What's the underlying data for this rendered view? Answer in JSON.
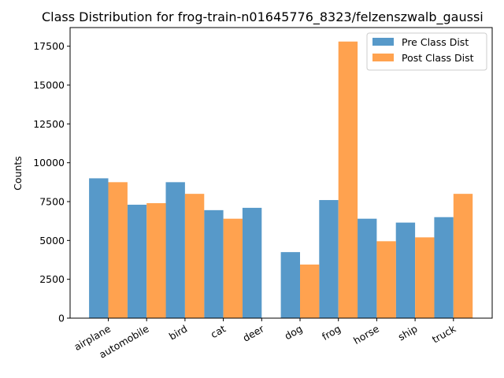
{
  "chart_data": {
    "type": "bar",
    "title": "Class Distribution for frog-train-n01645776_8323/felzenszwalb_gaussi",
    "xlabel": "",
    "ylabel": "Counts",
    "ylim": [
      0,
      18700
    ],
    "yticks": [
      0,
      2500,
      5000,
      7500,
      10000,
      12500,
      15000,
      17500
    ],
    "grid": false,
    "legend_position": "top-right",
    "categories": [
      "airplane",
      "automobile",
      "bird",
      "cat",
      "deer",
      "dog",
      "frog",
      "horse",
      "ship",
      "truck"
    ],
    "series": [
      {
        "name": "Pre Class Dist",
        "color": "#5799c9",
        "values": [
          9000,
          7300,
          8750,
          6950,
          7100,
          4250,
          7600,
          6400,
          6150,
          6500
        ]
      },
      {
        "name": "Post Class Dist",
        "color": "#ffa24f",
        "values": [
          8750,
          7400,
          8000,
          6400,
          0,
          3450,
          17800,
          4950,
          5200,
          8000
        ]
      }
    ]
  }
}
